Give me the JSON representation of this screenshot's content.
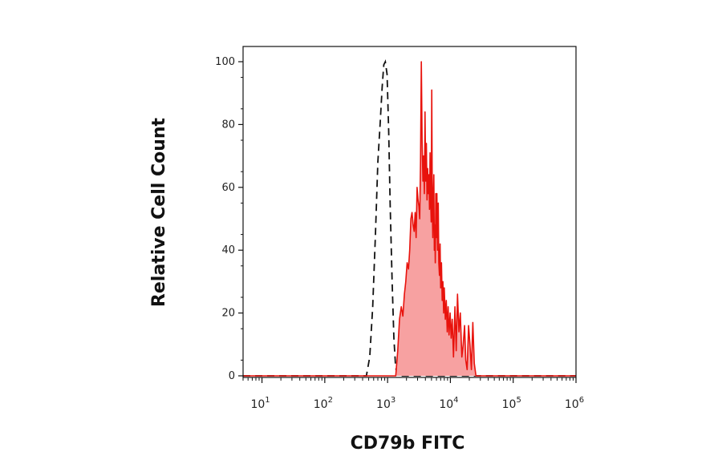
{
  "chart_data": {
    "type": "area",
    "xlabel": "CD79b FITC",
    "ylabel": "Relative Cell Count",
    "x_scale": "log",
    "xlim": [
      5,
      1000000
    ],
    "ylim": [
      0,
      100
    ],
    "x_ticks": [
      {
        "value": 10,
        "base": "10",
        "exp": "1"
      },
      {
        "value": 100,
        "base": "10",
        "exp": "2"
      },
      {
        "value": 1000,
        "base": "10",
        "exp": "3"
      },
      {
        "value": 10000,
        "base": "10",
        "exp": "4"
      },
      {
        "value": 100000,
        "base": "10",
        "exp": "5"
      },
      {
        "value": 1000000,
        "base": "10",
        "exp": "6"
      }
    ],
    "y_ticks": [
      "0",
      "20",
      "40",
      "60",
      "80",
      "100"
    ],
    "grid": false,
    "legend": "none",
    "series": [
      {
        "style": "dashed",
        "color": "#111111",
        "points": [
          [
            5,
            0
          ],
          [
            300,
            0
          ],
          [
            460,
            0
          ],
          [
            520,
            6
          ],
          [
            580,
            22
          ],
          [
            640,
            45
          ],
          [
            700,
            68
          ],
          [
            760,
            80
          ],
          [
            820,
            92
          ],
          [
            870,
            99
          ],
          [
            920,
            100
          ],
          [
            980,
            96
          ],
          [
            1040,
            78
          ],
          [
            1100,
            54
          ],
          [
            1180,
            30
          ],
          [
            1260,
            12
          ],
          [
            1340,
            3
          ],
          [
            1420,
            0
          ],
          [
            20000,
            0
          ],
          [
            1000000,
            0
          ]
        ]
      },
      {
        "style": "filled",
        "color": "#e8120c",
        "fill": "#f7a1a1",
        "points": [
          [
            5,
            0
          ],
          [
            1200,
            0
          ],
          [
            1350,
            0
          ],
          [
            1450,
            8
          ],
          [
            1550,
            18
          ],
          [
            1650,
            22
          ],
          [
            1750,
            19
          ],
          [
            1850,
            26
          ],
          [
            1950,
            30
          ],
          [
            2050,
            36
          ],
          [
            2150,
            34
          ],
          [
            2250,
            40
          ],
          [
            2350,
            50
          ],
          [
            2450,
            52
          ],
          [
            2550,
            48
          ],
          [
            2650,
            46
          ],
          [
            2750,
            52
          ],
          [
            2850,
            44
          ],
          [
            2950,
            60
          ],
          [
            3050,
            56
          ],
          [
            3150,
            54
          ],
          [
            3250,
            50
          ],
          [
            3350,
            68
          ],
          [
            3450,
            100
          ],
          [
            3550,
            74
          ],
          [
            3650,
            62
          ],
          [
            3750,
            70
          ],
          [
            3850,
            58
          ],
          [
            3950,
            84
          ],
          [
            4050,
            62
          ],
          [
            4150,
            74
          ],
          [
            4250,
            56
          ],
          [
            4350,
            66
          ],
          [
            4450,
            58
          ],
          [
            4550,
            64
          ],
          [
            4650,
            53
          ],
          [
            4750,
            71
          ],
          [
            4850,
            56
          ],
          [
            4950,
            49
          ],
          [
            5050,
            91
          ],
          [
            5150,
            53
          ],
          [
            5250,
            44
          ],
          [
            5350,
            58
          ],
          [
            5450,
            64
          ],
          [
            5550,
            40
          ],
          [
            5650,
            48
          ],
          [
            5750,
            36
          ],
          [
            5850,
            58
          ],
          [
            5950,
            44
          ],
          [
            6100,
            58
          ],
          [
            6250,
            40
          ],
          [
            6400,
            55
          ],
          [
            6550,
            36
          ],
          [
            6700,
            32
          ],
          [
            6850,
            42
          ],
          [
            7000,
            28
          ],
          [
            7200,
            36
          ],
          [
            7400,
            24
          ],
          [
            7600,
            30
          ],
          [
            7800,
            20
          ],
          [
            8000,
            28
          ],
          [
            8300,
            18
          ],
          [
            8600,
            24
          ],
          [
            8900,
            14
          ],
          [
            9200,
            22
          ],
          [
            9500,
            13
          ],
          [
            9900,
            20
          ],
          [
            10300,
            12
          ],
          [
            10700,
            18
          ],
          [
            11200,
            6
          ],
          [
            11800,
            22
          ],
          [
            12400,
            8
          ],
          [
            13000,
            26
          ],
          [
            13700,
            14
          ],
          [
            14400,
            20
          ],
          [
            15200,
            6
          ],
          [
            16000,
            10
          ],
          [
            16800,
            16
          ],
          [
            17600,
            5
          ],
          [
            18500,
            2
          ],
          [
            19500,
            16
          ],
          [
            20500,
            10
          ],
          [
            21600,
            2
          ],
          [
            22800,
            17
          ],
          [
            24000,
            4
          ],
          [
            25500,
            0
          ],
          [
            1000000,
            0
          ]
        ]
      }
    ]
  }
}
